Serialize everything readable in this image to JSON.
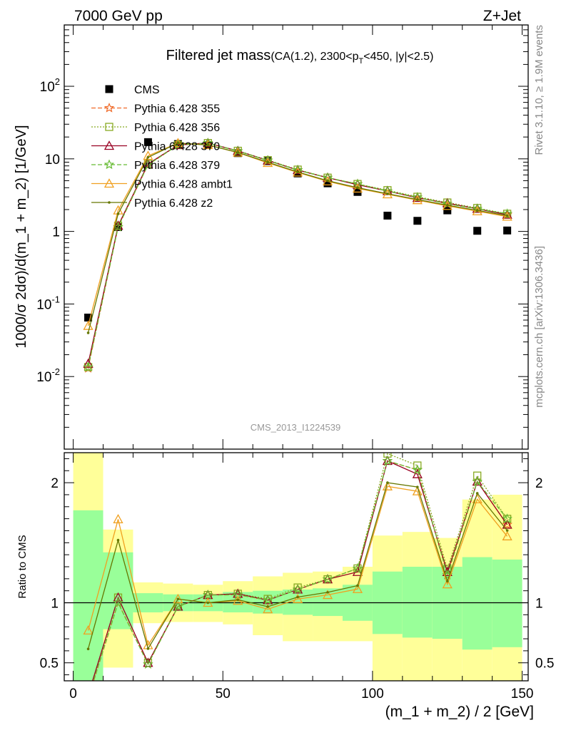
{
  "header": {
    "energy": "7000 GeV pp",
    "process": "Z+Jet",
    "rivet": "Rivet 3.1.10, ≥ 1.9M events",
    "site": "mcplots.cern.ch [arXiv:1306.3436]",
    "analysis_id": "CMS_2013_I1224539"
  },
  "chart_data": [
    {
      "type": "scatter",
      "title_main": "Filtered jet mass",
      "title_sub": "(CA(1.2), 2300<p",
      "title_sub_index": "T",
      "title_sub_tail": "<450, |y|<2.5)",
      "ylabel": "1000/σ 2dσ)/d(m_1 + m_2) [1/GeV]",
      "yscale": "log",
      "ylim": [
        0.001,
        700
      ],
      "xlim": [
        -3,
        152
      ],
      "yticks": [
        {
          "v": 0.01,
          "base": "10",
          "exp": "-2"
        },
        {
          "v": 0.1,
          "base": "10",
          "exp": "-1"
        },
        {
          "v": 1,
          "base": "1",
          "exp": ""
        },
        {
          "v": 10,
          "base": "10",
          "exp": ""
        },
        {
          "v": 100,
          "base": "10",
          "exp": "2"
        }
      ],
      "x": [
        5,
        15,
        25,
        35,
        45,
        55,
        65,
        75,
        85,
        95,
        105,
        115,
        125,
        135,
        145
      ],
      "series": [
        {
          "name": "CMS",
          "color": "#000000",
          "marker": "square",
          "values": [
            0.065,
            1.15,
            17,
            16,
            15.5,
            12,
            9.3,
            6.3,
            4.6,
            3.5,
            1.65,
            1.4,
            1.95,
            1.02,
            1.03
          ]
        },
        {
          "name": "Pythia 6.428 355",
          "color": "#f06a28",
          "marker": "star",
          "dash": "6,3",
          "values": [
            0.013,
            1.15,
            8.3,
            15.5,
            16.5,
            12.8,
            9.5,
            7.0,
            5.5,
            4.5,
            3.6,
            2.95,
            2.4,
            2.05,
            1.7
          ]
        },
        {
          "name": "Pythia 6.428 356",
          "color": "#88aa22",
          "marker": "open-square",
          "dash": "2,2",
          "values": [
            0.0135,
            1.2,
            8.5,
            15.5,
            16.5,
            12.9,
            9.6,
            7.1,
            5.5,
            4.5,
            3.7,
            3.0,
            2.5,
            2.1,
            1.75
          ]
        },
        {
          "name": "Pythia 6.428 370",
          "color": "#990022",
          "marker": "open-triangle",
          "values": [
            0.015,
            1.2,
            8.5,
            15.5,
            16.5,
            12.9,
            9.5,
            7.0,
            5.5,
            4.4,
            3.6,
            2.9,
            2.45,
            2.05,
            1.7
          ]
        },
        {
          "name": "Pythia 6.428 379",
          "color": "#66bb33",
          "marker": "star",
          "dash": "6,3",
          "values": [
            0.0135,
            1.15,
            8.3,
            15.5,
            16.5,
            12.8,
            9.5,
            7.0,
            5.5,
            4.5,
            3.6,
            2.95,
            2.4,
            2.05,
            1.75
          ]
        },
        {
          "name": "Pythia 6.428 ambt1",
          "color": "#f0a020",
          "marker": "open-triangle",
          "values": [
            0.05,
            1.95,
            11,
            16.5,
            15.5,
            12.2,
            8.8,
            6.5,
            4.9,
            3.9,
            3.25,
            2.7,
            2.25,
            1.9,
            1.6
          ]
        },
        {
          "name": "Pythia 6.428 z2",
          "color": "#667700",
          "marker": "dot",
          "values": [
            0.04,
            1.75,
            10.5,
            16.5,
            15.5,
            12.3,
            9.0,
            6.6,
            5.0,
            4.0,
            3.3,
            2.75,
            2.3,
            1.95,
            1.65
          ]
        }
      ],
      "legend": {
        "placement": "top-left"
      }
    },
    {
      "type": "line",
      "ylabel": "Ratio to CMS",
      "ylim": [
        0.35,
        2.25
      ],
      "xlim": [
        -3,
        152
      ],
      "xlabel": "(m_1 + m_2) / 2 [GeV]",
      "xticks": [
        0,
        50,
        100,
        150
      ],
      "yticks": [
        {
          "v": 0.5,
          "label": "0.5"
        },
        {
          "v": 1,
          "label": "1"
        },
        {
          "v": 2,
          "label": "2"
        }
      ],
      "bins": [
        {
          "lo": 0,
          "hi": 10,
          "in_lo": 0.35,
          "in_hi": 1.77,
          "out_lo": 0.35,
          "out_hi": 2.25
        },
        {
          "lo": 10,
          "hi": 20,
          "in_lo": 0.78,
          "in_hi": 1.42,
          "out_lo": 0.46,
          "out_hi": 1.61
        },
        {
          "lo": 20,
          "hi": 30,
          "in_lo": 0.92,
          "in_hi": 1.08,
          "out_lo": 0.83,
          "out_hi": 1.17
        },
        {
          "lo": 30,
          "hi": 40,
          "in_lo": 0.93,
          "in_hi": 1.07,
          "out_lo": 0.84,
          "out_hi": 1.16
        },
        {
          "lo": 40,
          "hi": 50,
          "in_lo": 0.93,
          "in_hi": 1.07,
          "out_lo": 0.84,
          "out_hi": 1.15
        },
        {
          "lo": 50,
          "hi": 60,
          "in_lo": 0.92,
          "in_hi": 1.09,
          "out_lo": 0.82,
          "out_hi": 1.18
        },
        {
          "lo": 60,
          "hi": 70,
          "in_lo": 0.91,
          "in_hi": 1.1,
          "out_lo": 0.73,
          "out_hi": 1.22
        },
        {
          "lo": 70,
          "hi": 80,
          "in_lo": 0.9,
          "in_hi": 1.11,
          "out_lo": 0.68,
          "out_hi": 1.25
        },
        {
          "lo": 80,
          "hi": 90,
          "in_lo": 0.89,
          "in_hi": 1.12,
          "out_lo": 0.68,
          "out_hi": 1.26
        },
        {
          "lo": 90,
          "hi": 100,
          "in_lo": 0.85,
          "in_hi": 1.15,
          "out_lo": 0.68,
          "out_hi": 1.3
        },
        {
          "lo": 100,
          "hi": 110,
          "in_lo": 0.74,
          "in_hi": 1.26,
          "out_lo": 0.35,
          "out_hi": 1.56
        },
        {
          "lo": 110,
          "hi": 120,
          "in_lo": 0.71,
          "in_hi": 1.3,
          "out_lo": 0.35,
          "out_hi": 1.59
        },
        {
          "lo": 120,
          "hi": 130,
          "in_lo": 0.7,
          "in_hi": 1.3,
          "out_lo": 0.35,
          "out_hi": 1.54
        },
        {
          "lo": 130,
          "hi": 140,
          "in_lo": 0.61,
          "in_hi": 1.38,
          "out_lo": 0.35,
          "out_hi": 1.86
        },
        {
          "lo": 140,
          "hi": 150,
          "in_lo": 0.63,
          "in_hi": 1.36,
          "out_lo": 0.35,
          "out_hi": 1.9
        }
      ],
      "band_colors": {
        "inner": "#99ff99",
        "outer": "#ffff99"
      },
      "reference": 1
    }
  ]
}
